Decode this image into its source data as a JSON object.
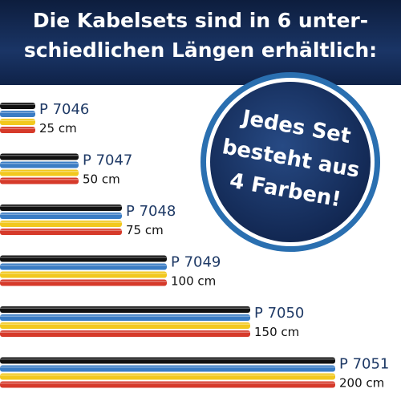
{
  "header": {
    "lines": [
      "Die Kabelsets sind in 6 unter-",
      "schiedlichen Längen erhältlich:"
    ]
  },
  "items": [
    {
      "code": "P 7046",
      "length": "25 cm"
    },
    {
      "code": "P 7047",
      "length": "50 cm"
    },
    {
      "code": "P 7048",
      "length": "75 cm"
    },
    {
      "code": "P 7049",
      "length": "100 cm"
    },
    {
      "code": "P 7050",
      "length": "150 cm"
    },
    {
      "code": "P 7051",
      "length": "200 cm"
    }
  ],
  "badge": {
    "lines": [
      "Jedes Set",
      "besteht aus",
      "4 Farben!"
    ]
  }
}
